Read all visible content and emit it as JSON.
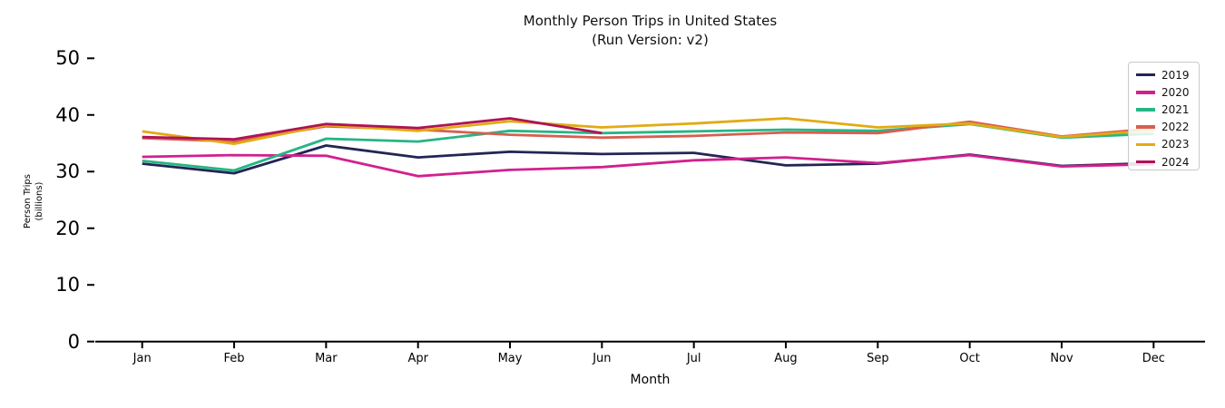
{
  "title": "Monthly Person Trips in United States",
  "subtitle": "(Run Version: v2)",
  "x_axis_label": "Month",
  "y_axis_label_line1": "Person Trips",
  "y_axis_label_line2": "(billions)",
  "chart_data": {
    "type": "line",
    "title": "Monthly Person Trips in United States (Run Version: v2)",
    "xlabel": "Month",
    "ylabel": "Person Trips (billions)",
    "categories": [
      "Jan",
      "Feb",
      "Mar",
      "Apr",
      "May",
      "Jun",
      "Jul",
      "Aug",
      "Sep",
      "Oct",
      "Nov",
      "Dec"
    ],
    "y_ticks": [
      0,
      10,
      20,
      30,
      40,
      50
    ],
    "ylim": [
      0,
      52
    ],
    "grid": false,
    "legend_position": "upper right",
    "series": [
      {
        "name": "2019",
        "color": "#232554",
        "values": [
          31.4,
          29.7,
          34.6,
          32.5,
          33.5,
          33.1,
          33.3,
          31.1,
          31.4,
          33.0,
          31.0,
          31.5
        ]
      },
      {
        "name": "2020",
        "color": "#d2208e",
        "values": [
          32.6,
          32.9,
          32.8,
          29.2,
          30.3,
          30.8,
          32.0,
          32.5,
          31.5,
          32.9,
          30.9,
          31.3
        ]
      },
      {
        "name": "2021",
        "color": "#26b584",
        "values": [
          31.9,
          30.2,
          35.8,
          35.3,
          37.2,
          36.8,
          37.1,
          37.4,
          37.2,
          38.4,
          36.0,
          36.7
        ]
      },
      {
        "name": "2022",
        "color": "#d85e51",
        "values": [
          35.9,
          35.3,
          38.0,
          37.4,
          36.5,
          36.0,
          36.3,
          36.9,
          36.8,
          38.8,
          36.2,
          37.6
        ]
      },
      {
        "name": "2023",
        "color": "#e2ab13",
        "values": [
          37.1,
          34.9,
          38.2,
          37.2,
          38.9,
          37.8,
          38.5,
          39.4,
          37.8,
          38.5,
          36.1,
          37.3
        ]
      },
      {
        "name": "2024",
        "color": "#ae1356",
        "values": [
          36.1,
          35.7,
          38.4,
          37.7,
          39.4,
          36.8,
          null,
          null,
          null,
          null,
          null,
          null
        ]
      }
    ]
  }
}
